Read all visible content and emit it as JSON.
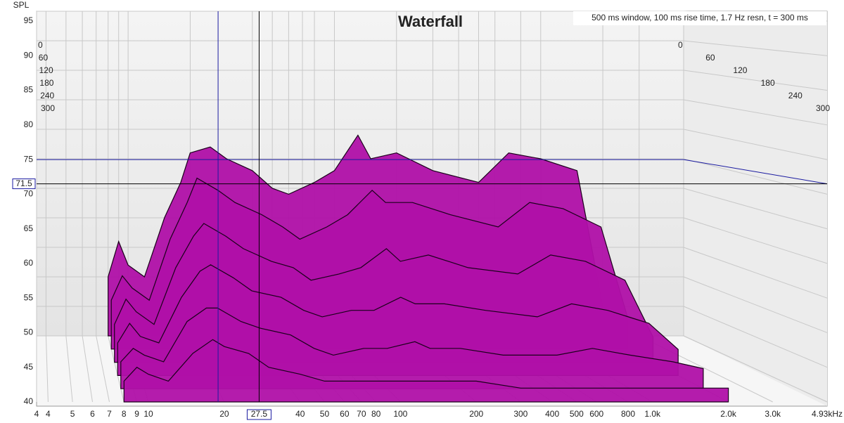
{
  "chart_data": {
    "type": "waterfall",
    "title": "Waterfall",
    "subtitle": "500 ms window, 100 ms rise time,  1.7 Hz resn, t = 300 ms",
    "y_label": "SPL",
    "ylim": [
      40,
      96
    ],
    "yticks": [
      40,
      45,
      50,
      55,
      60,
      65,
      70,
      75,
      80,
      85,
      90,
      95
    ],
    "xlim": [
      3.6,
      4930
    ],
    "log_x": true,
    "grid": true,
    "color": "#b010a8",
    "xticks": [
      {
        "value": 3.6,
        "label": "4"
      },
      4,
      5,
      6,
      7,
      8,
      9,
      10,
      20,
      40,
      50,
      60,
      70,
      80,
      100,
      200,
      300,
      400,
      500,
      600,
      800,
      {
        "value": 1000,
        "label": "1.0k"
      },
      {
        "value": 2000,
        "label": "2.0k"
      },
      {
        "value": 3000,
        "label": "3.0k"
      },
      {
        "value": 4930,
        "label": "4.93kHz"
      }
    ],
    "time_ticks": [
      0,
      60,
      120,
      180,
      240,
      300
    ],
    "x": [
      8,
      9,
      10,
      12,
      15,
      18,
      20,
      25,
      30,
      40,
      50,
      60,
      80,
      100,
      130,
      150,
      200,
      300,
      500,
      700,
      1000,
      1500,
      2000
    ],
    "series": [
      {
        "name": "0",
        "values": [
          50,
          56,
          52,
          50,
          60,
          66,
          71,
          72,
          70,
          68,
          65,
          64,
          66,
          68,
          74,
          70,
          71,
          68,
          66,
          71,
          70,
          68,
          45
        ]
      },
      {
        "name": "60",
        "values": [
          48,
          52,
          50,
          48,
          58,
          64,
          68,
          66,
          64,
          62,
          60,
          58,
          60,
          62,
          66,
          64,
          64,
          62,
          60,
          64,
          63,
          60,
          45
        ]
      },
      {
        "name": "120",
        "values": [
          46,
          50,
          48,
          46,
          55,
          60,
          62,
          60,
          58,
          56,
          55,
          53,
          54,
          55,
          58,
          56,
          57,
          55,
          54,
          57,
          56,
          53,
          44
        ]
      },
      {
        "name": "180",
        "values": [
          45,
          48,
          46,
          45,
          52,
          56,
          57,
          55,
          53,
          52,
          50,
          49,
          50,
          50,
          52,
          51,
          51,
          50,
          49,
          51,
          50,
          48,
          44
        ]
      },
      {
        "name": "240",
        "values": [
          44,
          46,
          45,
          44,
          50,
          52,
          52,
          50,
          49,
          48,
          46,
          45,
          46,
          46,
          47,
          46,
          46,
          45,
          45,
          46,
          45,
          44,
          43
        ]
      },
      {
        "name": "300",
        "values": [
          43,
          45,
          44,
          43,
          47,
          49,
          48,
          47,
          45,
          44,
          43,
          43,
          43,
          43,
          43,
          43,
          43,
          42,
          42,
          42,
          42,
          42,
          42
        ]
      }
    ],
    "cursor": {
      "x": 27.5,
      "y": 71.5
    },
    "cursor2": {
      "x": 18.9,
      "y": 75
    }
  }
}
